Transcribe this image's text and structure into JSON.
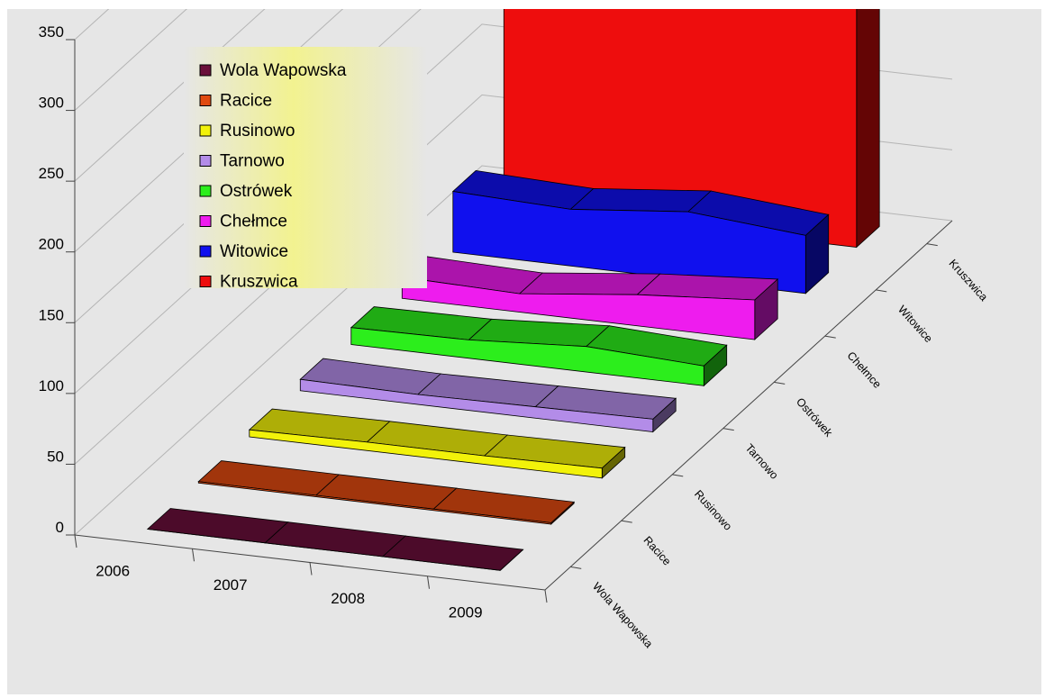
{
  "chart_data": {
    "type": "area",
    "title": "",
    "xlabel": "",
    "ylabel": "",
    "ylim": [
      0,
      350
    ],
    "y_ticks": [
      "0",
      "50",
      "100",
      "150",
      "200",
      "250",
      "300",
      "350"
    ],
    "x": [
      "2006",
      "2007",
      "2008",
      "2009"
    ],
    "depth_labels": [
      "Wola Wapowska",
      "Racice",
      "Rusinowo",
      "Tarnowo",
      "Ostrówek",
      "Chełmce",
      "Witowice",
      "Kruszwica"
    ],
    "legend_position": "top-left",
    "grid": true,
    "series": [
      {
        "name": "Wola Wapowska",
        "values": [
          0,
          0,
          0,
          0
        ],
        "color": "#6a0f3a"
      },
      {
        "name": "Racice",
        "values": [
          1,
          1,
          1,
          1
        ],
        "color": "#e04a10"
      },
      {
        "name": "Rusinowo",
        "values": [
          5,
          6,
          6,
          7
        ],
        "color": "#f2f20a"
      },
      {
        "name": "Tarnowo",
        "values": [
          8,
          7,
          8,
          9
        ],
        "color": "#b38ce8"
      },
      {
        "name": "Ostrówek",
        "values": [
          12,
          13,
          18,
          14
        ],
        "color": "#2cee1c"
      },
      {
        "name": "Chełmce",
        "values": [
          15,
          13,
          22,
          28
        ],
        "color": "#ee1cee"
      },
      {
        "name": "Witowice",
        "values": [
          43,
          40,
          48,
          41
        ],
        "color": "#1010ee"
      },
      {
        "name": "Kruszwica",
        "values": [
          306,
          299,
          316,
          316
        ],
        "color": "#ee0d0d"
      }
    ]
  }
}
